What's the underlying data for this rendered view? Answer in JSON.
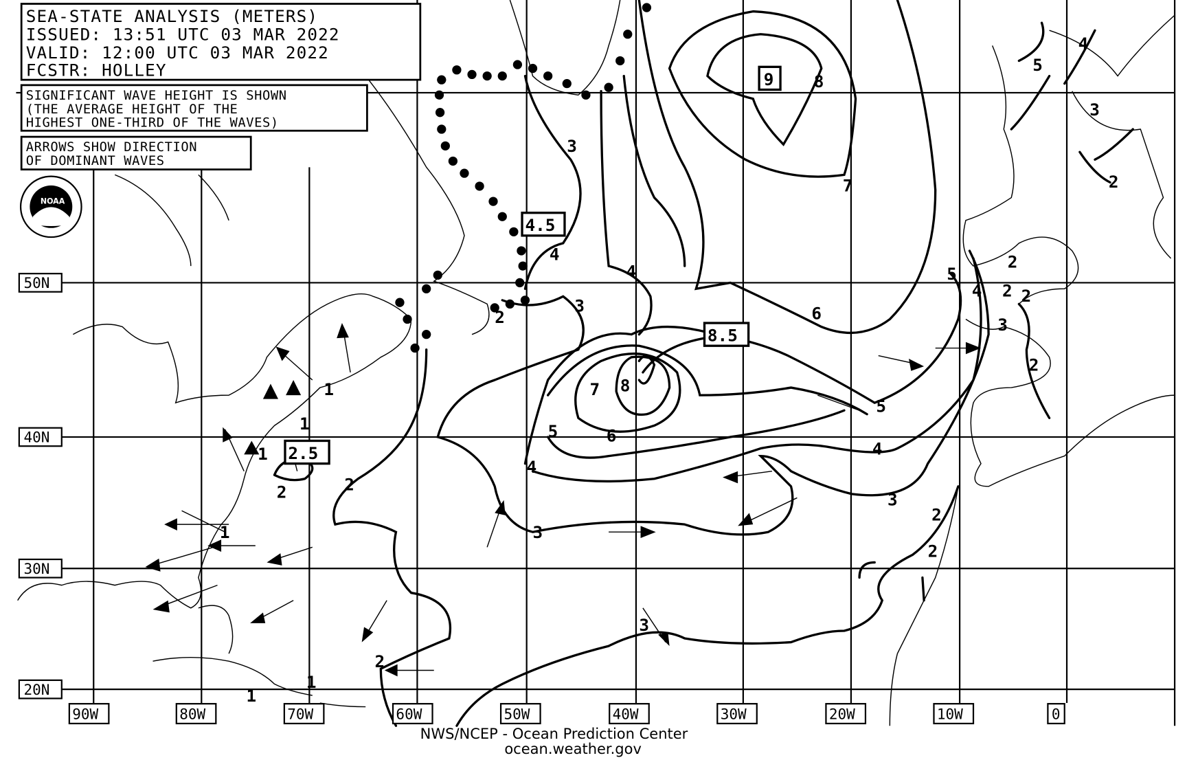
{
  "header": {
    "title": "SEA-STATE ANALYSIS (METERS)",
    "issued": "ISSUED:  13:51 UTC 03 MAR 2022",
    "valid": "VALID:   12:00 UTC 03 MAR 2022",
    "forecaster": "FCSTR:   HOLLEY"
  },
  "notes": {
    "wave_height": [
      "SIGNIFICANT WAVE HEIGHT IS SHOWN",
      "(THE AVERAGE HEIGHT OF THE",
      "HIGHEST ONE-THIRD OF THE WAVES)"
    ],
    "arrows": [
      "ARROWS SHOW DIRECTION",
      "OF DOMINANT WAVES"
    ]
  },
  "logo": {
    "name": "NOAA",
    "icon": "noaa-logo"
  },
  "latitude_labels": [
    "50N",
    "40N",
    "30N",
    "20N"
  ],
  "longitude_labels": [
    "90W",
    "80W",
    "70W",
    "60W",
    "50W",
    "40W",
    "30W",
    "20W",
    "10W",
    "0"
  ],
  "max_boxes": [
    "9",
    "4.5",
    "8.5",
    "2.5"
  ],
  "contour_labels": [
    "8",
    "3",
    "4",
    "4",
    "3",
    "2",
    "7",
    "6",
    "8",
    "7",
    "5",
    "6",
    "5",
    "4",
    "4",
    "3",
    "3",
    "2",
    "2",
    "1",
    "1",
    "1",
    "1",
    "2",
    "2",
    "3",
    "2",
    "5",
    "4",
    "3",
    "4",
    "3",
    "2",
    "2",
    "2",
    "2",
    "2",
    "1",
    "1",
    "5"
  ],
  "footer": {
    "line1": "NWS/NCEP - Ocean Prediction Center",
    "line2": "ocean.weather.gov"
  },
  "colors": {
    "ink": "#000000",
    "background": "#ffffff"
  }
}
